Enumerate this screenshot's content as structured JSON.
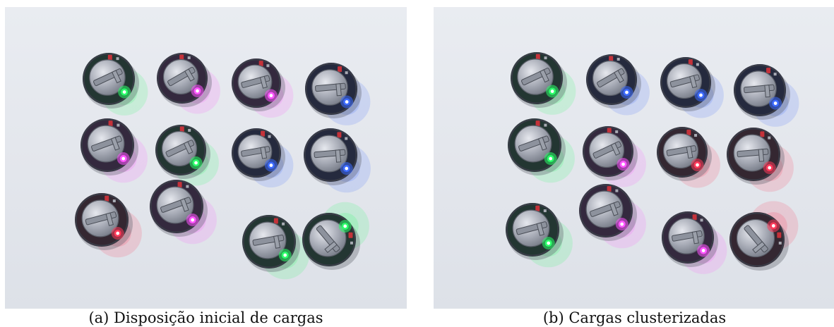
{
  "figure": {
    "panels": [
      {
        "caption": "(a) Disposição inicial de cargas",
        "led_colors": [
          "#2bff6a",
          "#ff55ff",
          "#ff55ff",
          "#3d6bff",
          "#ff55ff",
          "#2bff6a",
          "#3d6bff",
          "#3d6bff",
          "#ff3a5a",
          "#ff55ff",
          "#2bff6a",
          "#2bff6a"
        ]
      },
      {
        "caption": "(b) Cargas clusterizadas",
        "led_colors": [
          "#2bff6a",
          "#3d6bff",
          "#3d6bff",
          "#3d6bff",
          "#2bff6a",
          "#ff55ff",
          "#ff3a5a",
          "#ff3a5a",
          "#2bff6a",
          "#ff55ff",
          "#ff55ff",
          "#ff3a5a"
        ]
      }
    ]
  }
}
